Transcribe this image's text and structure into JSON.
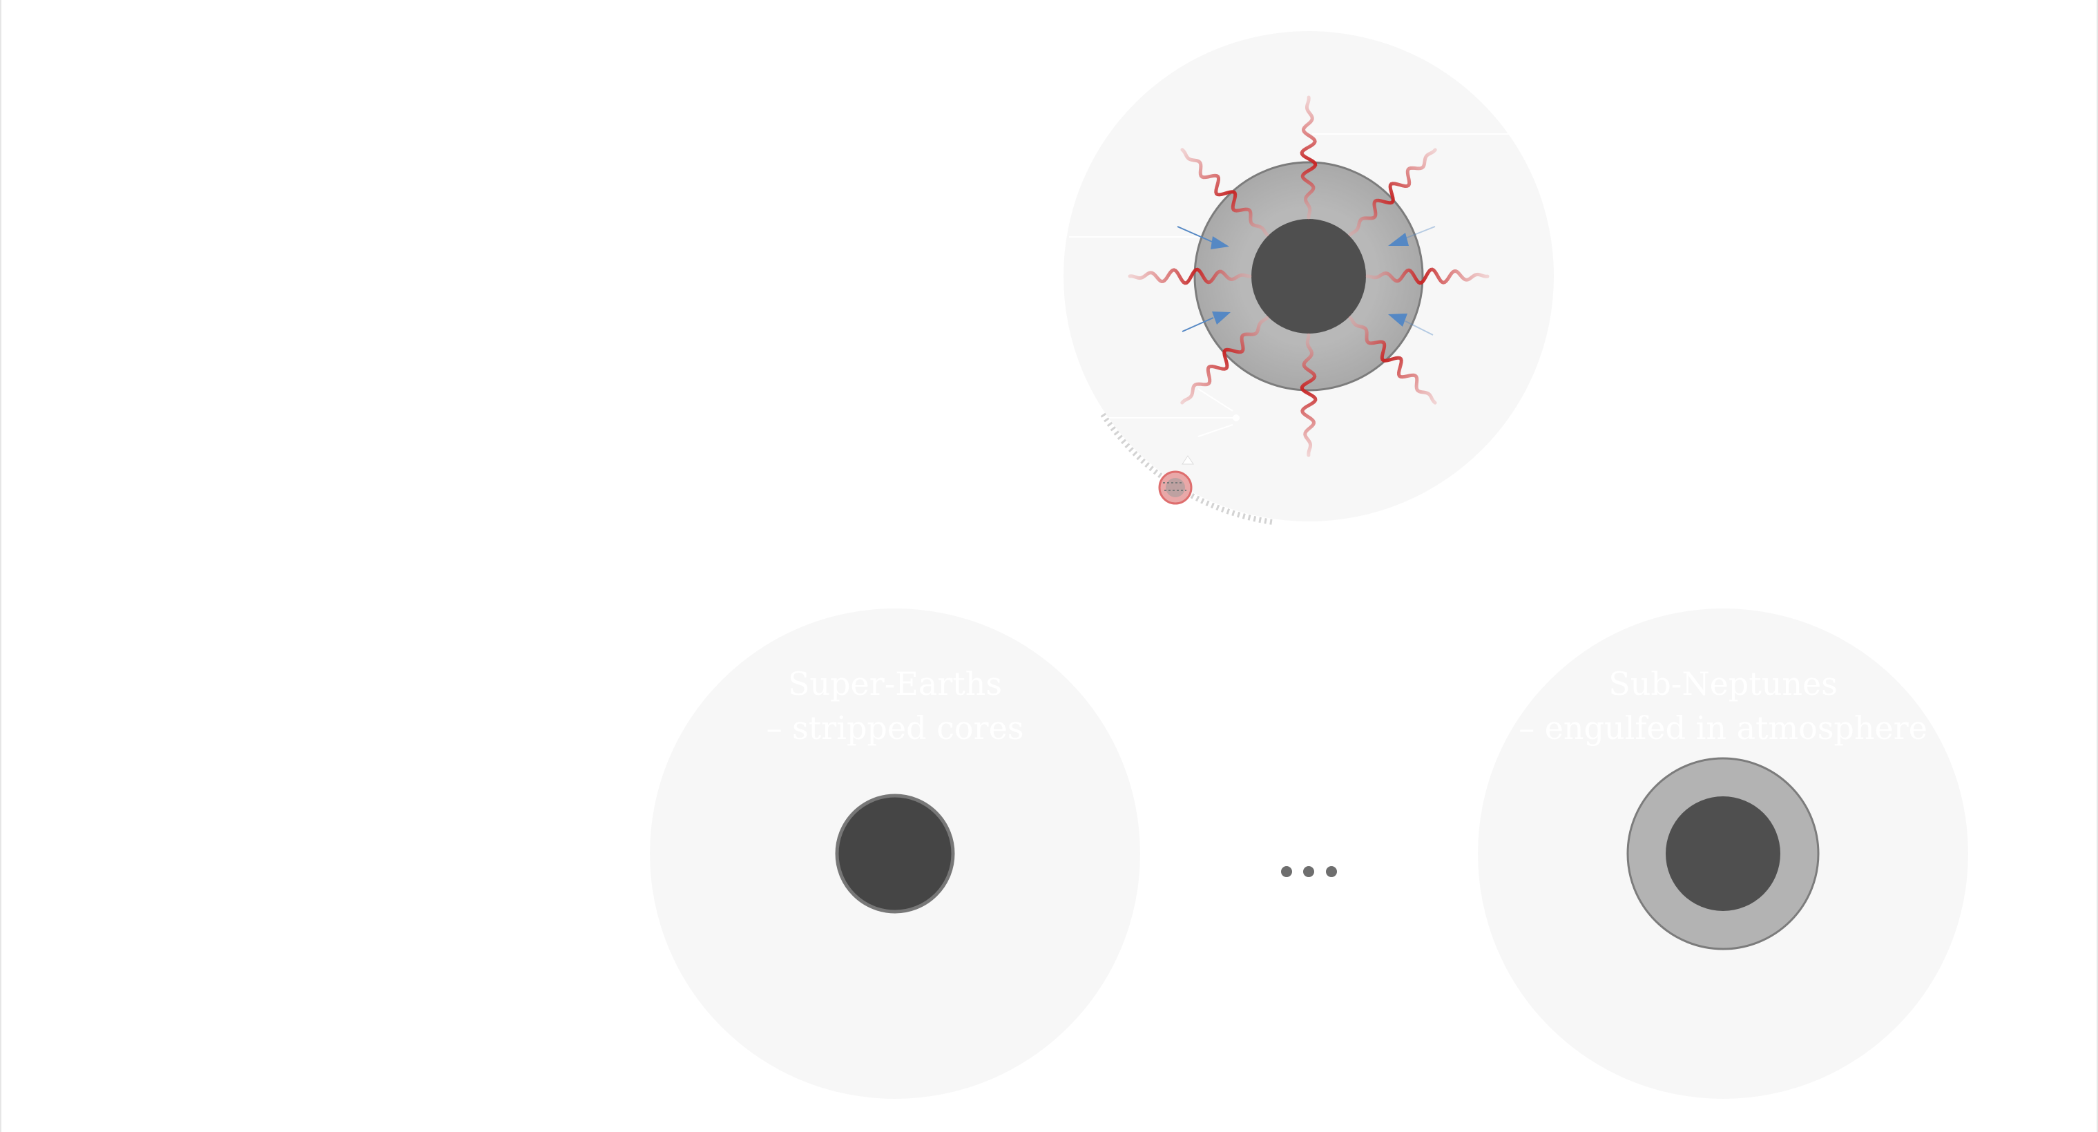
{
  "colors": {
    "bubble": "#f7f7f7",
    "core": "#4f4f4f",
    "core_dark": "#454545",
    "atmosphere": "#b3b3b3",
    "atmosphere_outline": "#7c7c7c",
    "radiation": "#cc3333",
    "pressure_arrow": "#5588c4",
    "caption_text": "#ffffff",
    "ellipsis": "#6e6e6e"
  },
  "panels": {
    "top": {
      "icons": [
        "core-icon",
        "atmosphere-icon",
        "radiation-wave-icon",
        "pressure-arrow-icon",
        "escaping-particle-icon"
      ],
      "radiation_wave_count": 8,
      "pressure_arrow_count": 4
    },
    "bottom_left": {
      "line1": "Super-Earths",
      "line2": "– stripped cores"
    },
    "bottom_right": {
      "line1": "Sub-Neptunes",
      "line2": "– engulfed in atmosphere"
    },
    "ellipsis": "•••"
  }
}
